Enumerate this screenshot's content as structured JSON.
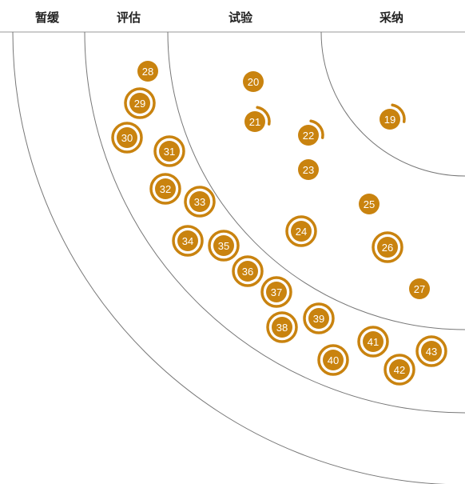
{
  "rings": [
    {
      "label": "暂缓"
    },
    {
      "label": "评估"
    },
    {
      "label": "试验"
    },
    {
      "label": "采纳"
    }
  ],
  "colors": {
    "blip": "#c9830f",
    "ring_line": "#777777",
    "separator": "#9a9a9a",
    "label": "#222222"
  },
  "blips": [
    {
      "id": "19",
      "ring": "采纳",
      "marker": "moved-in"
    },
    {
      "id": "20",
      "ring": "试验",
      "marker": "none"
    },
    {
      "id": "21",
      "ring": "试验",
      "marker": "moved-in"
    },
    {
      "id": "22",
      "ring": "试验",
      "marker": "moved-in"
    },
    {
      "id": "23",
      "ring": "试验",
      "marker": "none"
    },
    {
      "id": "24",
      "ring": "试验",
      "marker": "new"
    },
    {
      "id": "25",
      "ring": "试验",
      "marker": "none"
    },
    {
      "id": "26",
      "ring": "试验",
      "marker": "new"
    },
    {
      "id": "27",
      "ring": "试验",
      "marker": "none"
    },
    {
      "id": "28",
      "ring": "评估",
      "marker": "none"
    },
    {
      "id": "29",
      "ring": "评估",
      "marker": "new"
    },
    {
      "id": "30",
      "ring": "评估",
      "marker": "new"
    },
    {
      "id": "31",
      "ring": "评估",
      "marker": "new"
    },
    {
      "id": "32",
      "ring": "评估",
      "marker": "new"
    },
    {
      "id": "33",
      "ring": "评估",
      "marker": "new"
    },
    {
      "id": "34",
      "ring": "评估",
      "marker": "new"
    },
    {
      "id": "35",
      "ring": "评估",
      "marker": "new"
    },
    {
      "id": "36",
      "ring": "评估",
      "marker": "new"
    },
    {
      "id": "37",
      "ring": "评估",
      "marker": "new"
    },
    {
      "id": "38",
      "ring": "评估",
      "marker": "new"
    },
    {
      "id": "39",
      "ring": "评估",
      "marker": "new"
    },
    {
      "id": "40",
      "ring": "评估",
      "marker": "new"
    },
    {
      "id": "41",
      "ring": "评估",
      "marker": "new"
    },
    {
      "id": "42",
      "ring": "评估",
      "marker": "new"
    },
    {
      "id": "43",
      "ring": "评估",
      "marker": "new"
    }
  ]
}
